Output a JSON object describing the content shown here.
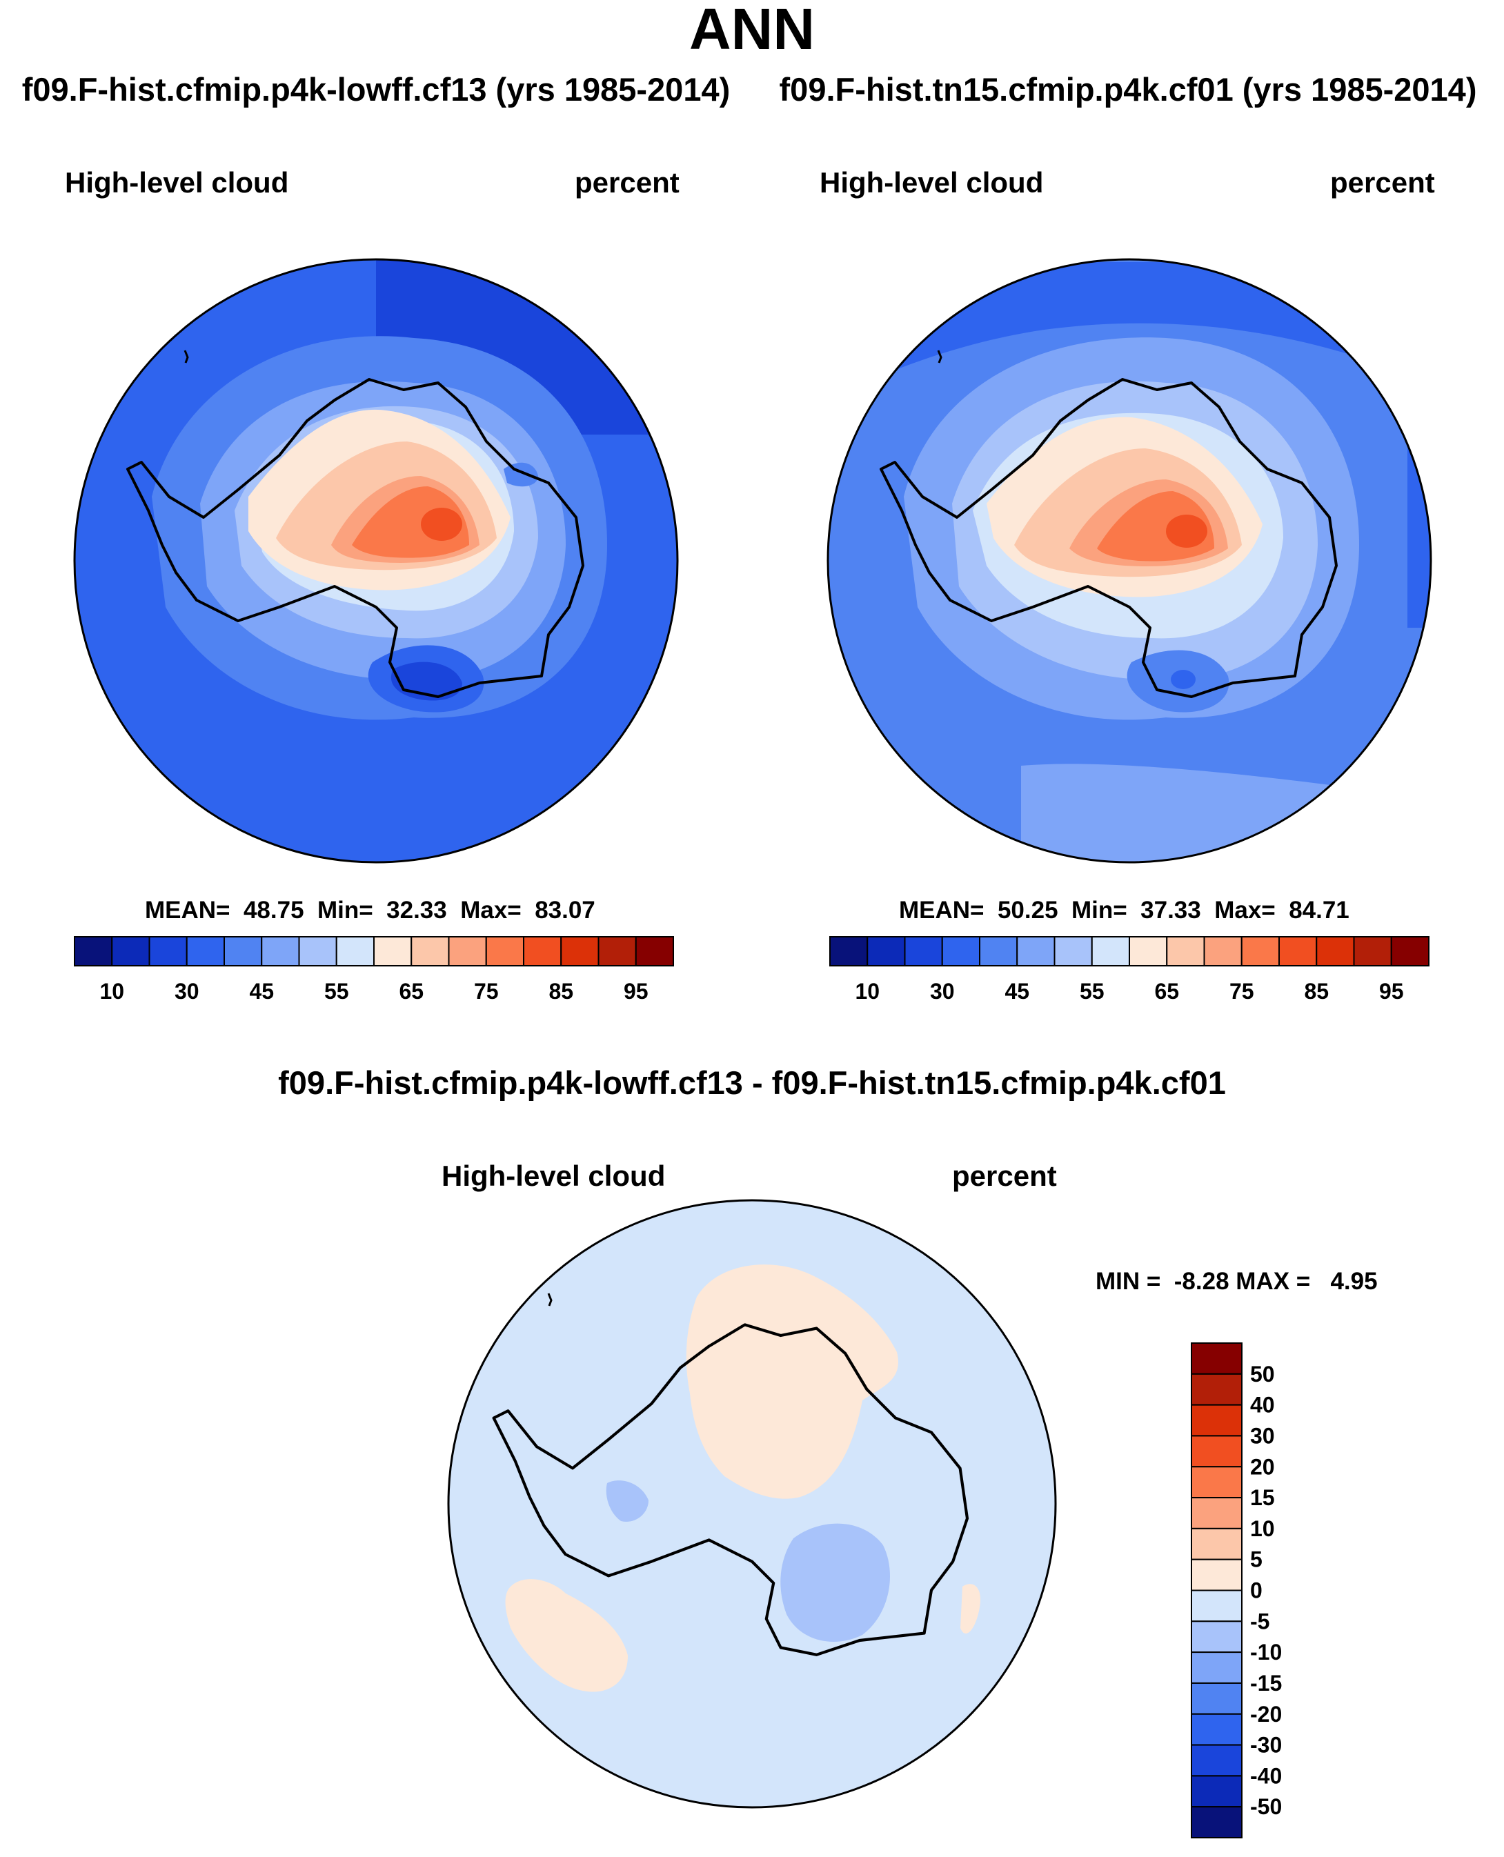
{
  "main_title": "ANN",
  "panels": [
    {
      "case_title": "f09.F-hist.cfmip.p4k-lowff.cf13 (yrs 1985-2014)",
      "variable": "High-level cloud",
      "units": "percent",
      "stats": {
        "mean_label": "MEAN=",
        "mean": "48.75",
        "min_label": "Min=",
        "min": "32.33",
        "max_label": "Max=",
        "max": "83.07"
      }
    },
    {
      "case_title": "f09.F-hist.tn15.cfmip.p4k.cf01 (yrs 1985-2014)",
      "variable": "High-level cloud",
      "units": "percent",
      "stats": {
        "mean_label": "MEAN=",
        "mean": "50.25",
        "min_label": "Min=",
        "min": "37.33",
        "max_label": "Max=",
        "max": "84.71"
      }
    }
  ],
  "diff": {
    "title": "f09.F-hist.cfmip.p4k-lowff.cf13 - f09.F-hist.tn15.cfmip.p4k.cf01",
    "variable": "High-level cloud",
    "units": "percent",
    "stats": {
      "min_label": "MIN =",
      "min": "-8.28",
      "max_label": "MAX =",
      "max": "4.95"
    }
  },
  "colorbar_abs": {
    "colors": [
      "#08127a",
      "#0c2ab8",
      "#1a45db",
      "#2f64ee",
      "#5083f2",
      "#7ea5f8",
      "#a8c3fa",
      "#d3e5fb",
      "#fde8d8",
      "#fcc7aa",
      "#fba27e",
      "#fa7849",
      "#f14f21",
      "#dc3108",
      "#b21f08",
      "#860000"
    ],
    "labels": [
      "10",
      "30",
      "45",
      "55",
      "65",
      "75",
      "85",
      "95"
    ]
  },
  "colorbar_diff": {
    "colors": [
      "#860000",
      "#b21f08",
      "#dc3108",
      "#f14f21",
      "#fa7849",
      "#fba27e",
      "#fcc7aa",
      "#fde8d8",
      "#d3e5fb",
      "#a8c3fa",
      "#7ea5f8",
      "#5083f2",
      "#2f64ee",
      "#1a45db",
      "#0c2ab8",
      "#08127a"
    ],
    "labels": [
      "50",
      "40",
      "30",
      "20",
      "15",
      "10",
      "5",
      "0",
      "-5",
      "-10",
      "-15",
      "-20",
      "-30",
      "-40",
      "-50"
    ]
  },
  "chart_data": {
    "type": "map",
    "projection": "south polar stereographic",
    "season": "ANN",
    "field": "High-level cloud",
    "units": "percent",
    "panel_stats": [
      {
        "case": "f09.F-hist.cfmip.p4k-lowff.cf13",
        "mean": 48.75,
        "min": 32.33,
        "max": 83.07
      },
      {
        "case": "f09.F-hist.tn15.cfmip.p4k.cf01",
        "mean": 50.25,
        "min": 37.33,
        "max": 84.71
      }
    ],
    "diff_stats": {
      "min": -8.28,
      "max": 4.95
    },
    "contour_levels_abs": [
      10,
      30,
      45,
      55,
      65,
      75,
      85,
      95
    ],
    "contour_levels_diff": [
      -50,
      -40,
      -30,
      -20,
      -15,
      -10,
      -5,
      0,
      5,
      10,
      15,
      20,
      30,
      40,
      50
    ]
  }
}
